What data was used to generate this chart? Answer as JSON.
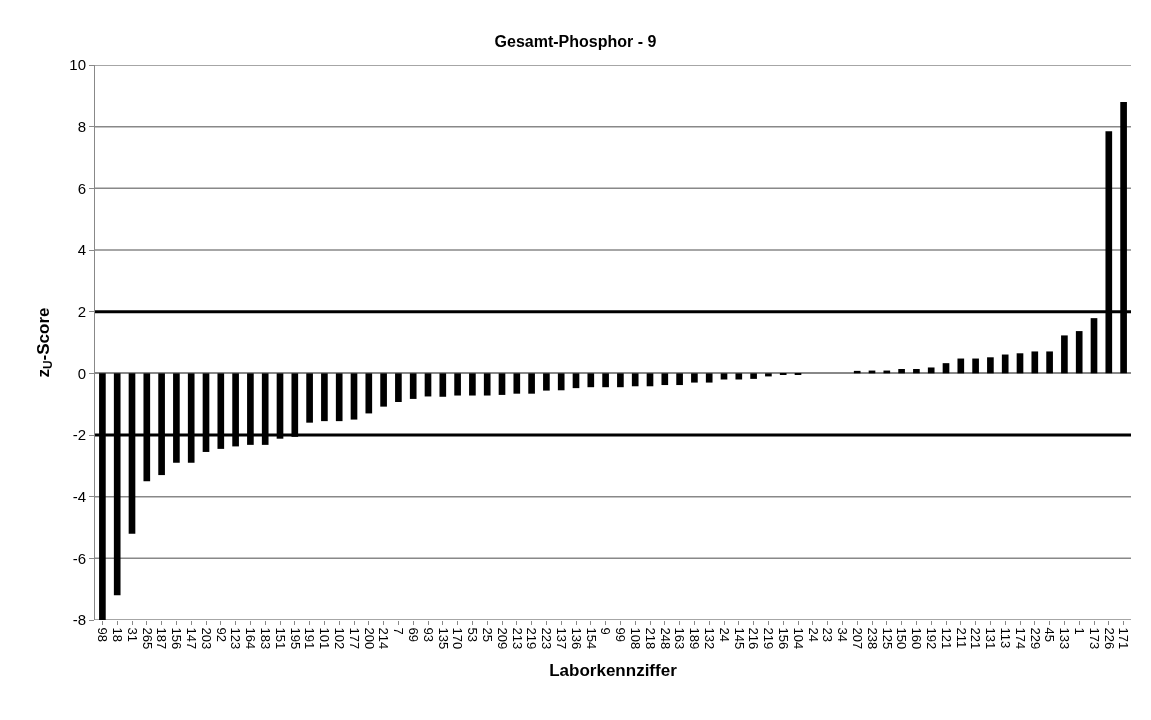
{
  "chart_data": {
    "type": "bar",
    "title": "Gesamt-Phosphor - 9",
    "xlabel": "Laborkennziffer",
    "ylabel": "z$_{U}$-Score",
    "categories": [
      "98",
      "18",
      "31",
      "265",
      "187",
      "156",
      "147",
      "203",
      "92",
      "123",
      "164",
      "183",
      "151",
      "195",
      "191",
      "101",
      "102",
      "177",
      "200",
      "214",
      "7",
      "69",
      "93",
      "135",
      "170",
      "53",
      "25",
      "209",
      "213",
      "219",
      "223",
      "137",
      "136",
      "154",
      "9",
      "99",
      "108",
      "218",
      "248",
      "163",
      "189",
      "132",
      "24",
      "145",
      "216",
      "219",
      "156",
      "104",
      "24",
      "23",
      "34",
      "207",
      "238",
      "125",
      "150",
      "160",
      "192",
      "121",
      "211",
      "221",
      "131",
      "113",
      "174",
      "229",
      "45",
      "133",
      "1",
      "173",
      "226",
      "171"
    ],
    "values": [
      -8,
      -7.2,
      -5.2,
      -3.5,
      -3.3,
      -2.9,
      -2.9,
      -2.55,
      -2.45,
      -2.37,
      -2.32,
      -2.32,
      -2.12,
      -2.06,
      -1.6,
      -1.55,
      -1.55,
      -1.5,
      -1.3,
      -1.08,
      -0.93,
      -0.83,
      -0.75,
      -0.76,
      -0.72,
      -0.72,
      -0.72,
      -0.7,
      -0.66,
      -0.66,
      -0.56,
      -0.55,
      -0.48,
      -0.45,
      -0.45,
      -0.45,
      -0.42,
      -0.42,
      -0.38,
      -0.38,
      -0.3,
      -0.3,
      -0.2,
      -0.2,
      -0.18,
      -0.1,
      -0.05,
      -0.03,
      0,
      0,
      0,
      0.08,
      0.09,
      0.09,
      0.14,
      0.14,
      0.19,
      0.33,
      0.48,
      0.48,
      0.52,
      0.61,
      0.65,
      0.71,
      0.71,
      1.23,
      1.37,
      1.79,
      7.85,
      8.8
    ],
    "color": "#000000",
    "ylim": [
      -8,
      10
    ],
    "yticks": [
      -8,
      -6,
      -4,
      -2,
      0,
      2,
      4,
      6,
      8,
      10
    ],
    "grid": "y",
    "ref_lines": [
      {
        "axis": "y",
        "value": 2,
        "color": "#000000"
      },
      {
        "axis": "y",
        "value": -2,
        "color": "#000000"
      }
    ]
  }
}
